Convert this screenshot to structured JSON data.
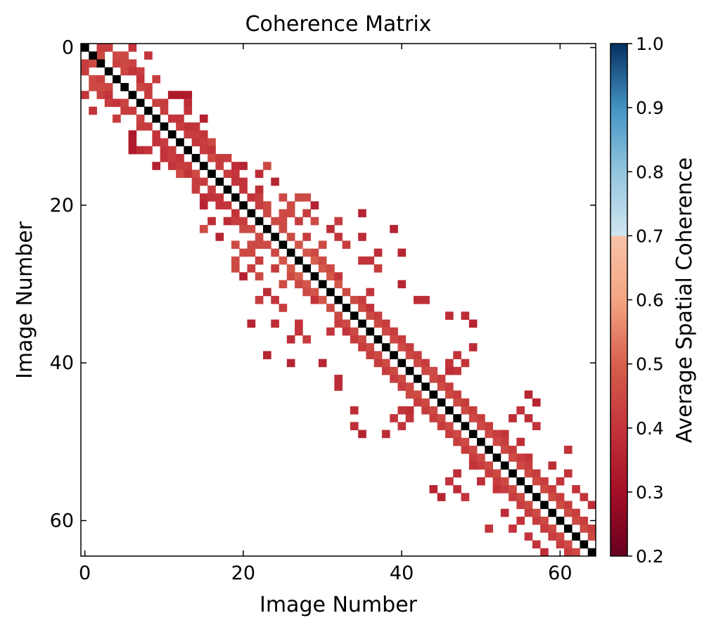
{
  "chart_data": {
    "type": "heatmap",
    "title": "Coherence Matrix",
    "xlabel": "Image Number",
    "ylabel": "Image Number",
    "n": 65,
    "xticks": [
      0,
      20,
      40,
      60
    ],
    "yticks": [
      0,
      20,
      40,
      60
    ],
    "colorbar": {
      "label": "Average Spatial Coherence",
      "min": 0.2,
      "max": 1.0,
      "ticks": [
        "1.0",
        "0.9",
        "0.8",
        "0.7",
        "0.6",
        "0.5",
        "0.4",
        "0.3",
        "0.2"
      ],
      "masked_from": 0.7
    },
    "diagonal_color": "#000000",
    "note_cells": "cells are [row, col, coherence]; matrix is symmetric, only upper triangle listed",
    "cells": [
      [
        0,
        2,
        0.42
      ],
      [
        0,
        3,
        0.42
      ],
      [
        0,
        6,
        0.4
      ],
      [
        1,
        2,
        0.45
      ],
      [
        1,
        4,
        0.45
      ],
      [
        1,
        5,
        0.45
      ],
      [
        1,
        8,
        0.4
      ],
      [
        2,
        4,
        0.43
      ],
      [
        2,
        5,
        0.45
      ],
      [
        2,
        6,
        0.43
      ],
      [
        3,
        5,
        0.44
      ],
      [
        3,
        6,
        0.4
      ],
      [
        3,
        7,
        0.42
      ],
      [
        4,
        7,
        0.4
      ],
      [
        4,
        9,
        0.42
      ],
      [
        5,
        7,
        0.44
      ],
      [
        5,
        8,
        0.42
      ],
      [
        6,
        8,
        0.42
      ],
      [
        6,
        11,
        0.33
      ],
      [
        6,
        12,
        0.33
      ],
      [
        6,
        13,
        0.33
      ],
      [
        7,
        9,
        0.43
      ],
      [
        7,
        10,
        0.42
      ],
      [
        7,
        13,
        0.38
      ],
      [
        8,
        10,
        0.42
      ],
      [
        8,
        13,
        0.4
      ],
      [
        9,
        11,
        0.4
      ],
      [
        9,
        12,
        0.4
      ],
      [
        9,
        15,
        0.35
      ],
      [
        10,
        12,
        0.42
      ],
      [
        10,
        13,
        0.4
      ],
      [
        10,
        14,
        0.4
      ],
      [
        11,
        13,
        0.42
      ],
      [
        11,
        14,
        0.42
      ],
      [
        11,
        15,
        0.4
      ],
      [
        12,
        14,
        0.4
      ],
      [
        12,
        15,
        0.42
      ],
      [
        12,
        16,
        0.45
      ],
      [
        13,
        15,
        0.42
      ],
      [
        13,
        16,
        0.4
      ],
      [
        14,
        16,
        0.45
      ],
      [
        14,
        17,
        0.42
      ],
      [
        14,
        18,
        0.42
      ],
      [
        15,
        17,
        0.42
      ],
      [
        15,
        19,
        0.38
      ],
      [
        15,
        20,
        0.36
      ],
      [
        15,
        23,
        0.45
      ],
      [
        16,
        18,
        0.42
      ],
      [
        16,
        19,
        0.4
      ],
      [
        16,
        22,
        0.38
      ],
      [
        17,
        19,
        0.4
      ],
      [
        17,
        20,
        0.4
      ],
      [
        17,
        24,
        0.36
      ],
      [
        18,
        20,
        0.4
      ],
      [
        18,
        22,
        0.38
      ],
      [
        19,
        21,
        0.4
      ],
      [
        19,
        22,
        0.42
      ],
      [
        19,
        25,
        0.45
      ],
      [
        19,
        27,
        0.45
      ],
      [
        19,
        28,
        0.45
      ],
      [
        20,
        22,
        0.42
      ],
      [
        20,
        23,
        0.45
      ],
      [
        20,
        26,
        0.45
      ],
      [
        20,
        29,
        0.35
      ],
      [
        21,
        23,
        0.45
      ],
      [
        21,
        25,
        0.45
      ],
      [
        21,
        26,
        0.45
      ],
      [
        21,
        28,
        0.42
      ],
      [
        21,
        35,
        0.36
      ],
      [
        22,
        24,
        0.45
      ],
      [
        22,
        25,
        0.45
      ],
      [
        22,
        27,
        0.42
      ],
      [
        22,
        29,
        0.45
      ],
      [
        22,
        32,
        0.42
      ],
      [
        23,
        25,
        0.45
      ],
      [
        23,
        31,
        0.38
      ],
      [
        23,
        39,
        0.36
      ],
      [
        24,
        26,
        0.45
      ],
      [
        24,
        28,
        0.42
      ],
      [
        24,
        32,
        0.4
      ],
      [
        24,
        35,
        0.38
      ],
      [
        25,
        27,
        0.48
      ],
      [
        25,
        30,
        0.45
      ],
      [
        25,
        33,
        0.42
      ],
      [
        26,
        28,
        0.48
      ],
      [
        26,
        29,
        0.45
      ],
      [
        26,
        37,
        0.38
      ],
      [
        26,
        40,
        0.36
      ],
      [
        27,
        29,
        0.5
      ],
      [
        27,
        30,
        0.45
      ],
      [
        27,
        35,
        0.4
      ],
      [
        27,
        36,
        0.4
      ],
      [
        28,
        30,
        0.48
      ],
      [
        28,
        31,
        0.45
      ],
      [
        28,
        37,
        0.42
      ],
      [
        29,
        31,
        0.48
      ],
      [
        29,
        32,
        0.4
      ],
      [
        30,
        32,
        0.48
      ],
      [
        30,
        40,
        0.36
      ],
      [
        31,
        33,
        0.45
      ],
      [
        31,
        36,
        0.4
      ],
      [
        32,
        34,
        0.45
      ],
      [
        32,
        35,
        0.42
      ],
      [
        32,
        42,
        0.38
      ],
      [
        32,
        43,
        0.38
      ],
      [
        33,
        35,
        0.45
      ],
      [
        33,
        36,
        0.4
      ],
      [
        34,
        36,
        0.45
      ],
      [
        34,
        37,
        0.42
      ],
      [
        34,
        46,
        0.38
      ],
      [
        34,
        48,
        0.38
      ],
      [
        35,
        37,
        0.45
      ],
      [
        35,
        38,
        0.42
      ],
      [
        35,
        49,
        0.36
      ],
      [
        36,
        38,
        0.45
      ],
      [
        36,
        39,
        0.42
      ],
      [
        37,
        39,
        0.45
      ],
      [
        37,
        40,
        0.42
      ],
      [
        38,
        40,
        0.45
      ],
      [
        38,
        41,
        0.42
      ],
      [
        38,
        49,
        0.38
      ],
      [
        39,
        41,
        0.45
      ],
      [
        39,
        42,
        0.42
      ],
      [
        39,
        47,
        0.4
      ],
      [
        40,
        42,
        0.45
      ],
      [
        40,
        43,
        0.42
      ],
      [
        40,
        46,
        0.4
      ],
      [
        40,
        48,
        0.4
      ],
      [
        41,
        43,
        0.45
      ],
      [
        41,
        44,
        0.45
      ],
      [
        41,
        46,
        0.38
      ],
      [
        41,
        47,
        0.4
      ],
      [
        42,
        44,
        0.45
      ],
      [
        42,
        45,
        0.42
      ],
      [
        43,
        45,
        0.45
      ],
      [
        43,
        46,
        0.42
      ],
      [
        44,
        46,
        0.45
      ],
      [
        44,
        47,
        0.42
      ],
      [
        44,
        56,
        0.36
      ],
      [
        45,
        47,
        0.45
      ],
      [
        45,
        48,
        0.42
      ],
      [
        45,
        57,
        0.36
      ],
      [
        46,
        48,
        0.45
      ],
      [
        46,
        49,
        0.42
      ],
      [
        46,
        55,
        0.4
      ],
      [
        47,
        49,
        0.45
      ],
      [
        47,
        50,
        0.42
      ],
      [
        47,
        54,
        0.38
      ],
      [
        47,
        56,
        0.38
      ],
      [
        48,
        50,
        0.45
      ],
      [
        48,
        51,
        0.42
      ],
      [
        48,
        57,
        0.4
      ],
      [
        49,
        51,
        0.45
      ],
      [
        49,
        52,
        0.42
      ],
      [
        49,
        53,
        0.4
      ],
      [
        50,
        52,
        0.45
      ],
      [
        50,
        53,
        0.42
      ],
      [
        50,
        55,
        0.38
      ],
      [
        51,
        53,
        0.45
      ],
      [
        51,
        54,
        0.42
      ],
      [
        51,
        61,
        0.4
      ],
      [
        52,
        54,
        0.45
      ],
      [
        52,
        55,
        0.42
      ],
      [
        52,
        56,
        0.4
      ],
      [
        53,
        55,
        0.45
      ],
      [
        53,
        56,
        0.42
      ],
      [
        53,
        59,
        0.38
      ],
      [
        54,
        56,
        0.45
      ],
      [
        54,
        57,
        0.42
      ],
      [
        54,
        61,
        0.4
      ],
      [
        55,
        57,
        0.45
      ],
      [
        55,
        58,
        0.42
      ],
      [
        55,
        60,
        0.4
      ],
      [
        56,
        58,
        0.45
      ],
      [
        56,
        59,
        0.42
      ],
      [
        56,
        62,
        0.4
      ],
      [
        57,
        59,
        0.45
      ],
      [
        57,
        60,
        0.42
      ],
      [
        57,
        63,
        0.4
      ],
      [
        58,
        60,
        0.45
      ],
      [
        58,
        61,
        0.42
      ],
      [
        58,
        64,
        0.38
      ],
      [
        59,
        61,
        0.45
      ],
      [
        59,
        62,
        0.42
      ],
      [
        60,
        62,
        0.45
      ],
      [
        60,
        63,
        0.42
      ],
      [
        61,
        63,
        0.45
      ],
      [
        61,
        64,
        0.42
      ],
      [
        62,
        64,
        0.45
      ]
    ]
  }
}
